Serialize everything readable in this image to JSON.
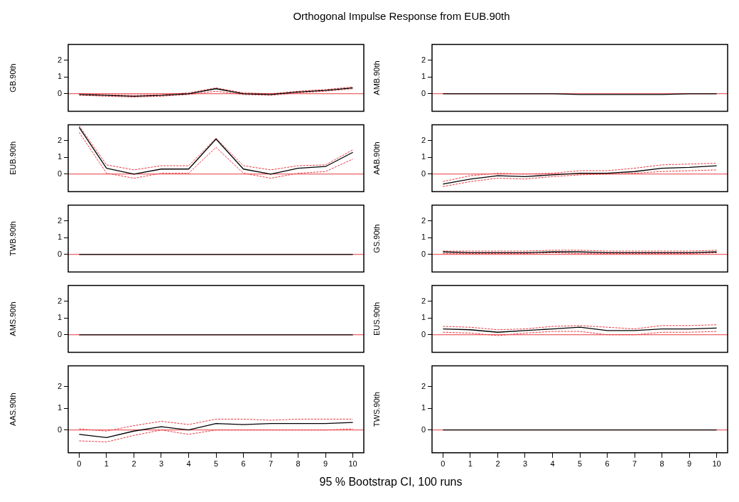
{
  "chart_data": [
    {
      "type": "line",
      "title": "Orthogonal Impulse Response from EUB.90th",
      "ylabel": "GB.90th",
      "x": [
        0,
        1,
        2,
        3,
        4,
        5,
        6,
        7,
        8,
        9,
        10
      ],
      "xlim": [
        -0.4,
        10.4
      ],
      "xticks": [
        0,
        1,
        2,
        3,
        4,
        5,
        6,
        7,
        8,
        9,
        10
      ],
      "ylim": [
        -1.05,
        2.95
      ],
      "yticks": [
        0,
        1,
        2
      ],
      "tick_labels": "y",
      "series": [
        {
          "color": "#000000",
          "values": [
            -0.05,
            -0.1,
            -0.15,
            -0.1,
            0.0,
            0.3,
            0.0,
            -0.05,
            0.1,
            0.2,
            0.35
          ]
        },
        {
          "color": "#e8393f",
          "line_style": "dashed",
          "values": [
            -0.1,
            -0.15,
            -0.2,
            -0.15,
            -0.05,
            0.15,
            -0.05,
            -0.1,
            0.05,
            0.15,
            0.3
          ]
        },
        {
          "color": "#e8393f",
          "line_style": "dashed",
          "values": [
            0.0,
            -0.05,
            -0.1,
            -0.05,
            0.05,
            0.35,
            0.05,
            0.0,
            0.15,
            0.25,
            0.4
          ]
        }
      ],
      "ref_lines": [
        {
          "axis": "y",
          "value": 0,
          "color": "#e8393f"
        }
      ]
    },
    {
      "type": "line",
      "ylabel": "AMB.90th",
      "x": [
        0,
        1,
        2,
        3,
        4,
        5,
        6,
        7,
        8,
        9,
        10
      ],
      "xlim": [
        -0.4,
        10.4
      ],
      "xticks": [
        0,
        1,
        2,
        3,
        4,
        5,
        6,
        7,
        8,
        9,
        10
      ],
      "ylim": [
        -1.05,
        2.95
      ],
      "yticks": [
        0,
        1,
        2
      ],
      "tick_labels": "y",
      "series": [
        {
          "color": "#000000",
          "values": [
            0.0,
            0.0,
            0.0,
            0.0,
            0.0,
            -0.05,
            -0.05,
            -0.05,
            -0.05,
            0.0,
            0.0
          ]
        }
      ],
      "ref_lines": [
        {
          "axis": "y",
          "value": 0,
          "color": "#e8393f"
        }
      ]
    },
    {
      "type": "line",
      "ylabel": "EUB.90th",
      "x": [
        0,
        1,
        2,
        3,
        4,
        5,
        6,
        7,
        8,
        9,
        10
      ],
      "xlim": [
        -0.4,
        10.4
      ],
      "xticks": [
        0,
        1,
        2,
        3,
        4,
        5,
        6,
        7,
        8,
        9,
        10
      ],
      "ylim": [
        -1.05,
        2.95
      ],
      "yticks": [
        0,
        1,
        2
      ],
      "tick_labels": "y",
      "series": [
        {
          "color": "#000000",
          "values": [
            2.8,
            0.35,
            0.0,
            0.3,
            0.3,
            2.1,
            0.3,
            0.0,
            0.35,
            0.45,
            1.3
          ]
        },
        {
          "color": "#e8393f",
          "line_style": "dashed",
          "values": [
            2.5,
            0.05,
            -0.25,
            0.05,
            0.05,
            1.6,
            0.05,
            -0.25,
            0.05,
            0.15,
            0.9
          ]
        },
        {
          "color": "#e8393f",
          "line_style": "dashed",
          "values": [
            2.9,
            0.55,
            0.25,
            0.5,
            0.5,
            2.15,
            0.5,
            0.25,
            0.5,
            0.55,
            1.45
          ]
        }
      ],
      "ref_lines": [
        {
          "axis": "y",
          "value": 0,
          "color": "#e8393f"
        }
      ]
    },
    {
      "type": "line",
      "ylabel": "AAB.90th",
      "x": [
        0,
        1,
        2,
        3,
        4,
        5,
        6,
        7,
        8,
        9,
        10
      ],
      "xlim": [
        -0.4,
        10.4
      ],
      "xticks": [
        0,
        1,
        2,
        3,
        4,
        5,
        6,
        7,
        8,
        9,
        10
      ],
      "ylim": [
        -1.05,
        2.95
      ],
      "yticks": [
        0,
        1,
        2
      ],
      "tick_labels": "y",
      "series": [
        {
          "color": "#000000",
          "values": [
            -0.6,
            -0.3,
            -0.1,
            -0.15,
            -0.05,
            0.05,
            0.05,
            0.15,
            0.35,
            0.4,
            0.5
          ]
        },
        {
          "color": "#e8393f",
          "line_style": "dashed",
          "values": [
            -0.75,
            -0.45,
            -0.25,
            -0.3,
            -0.15,
            -0.05,
            0.0,
            0.05,
            0.15,
            0.2,
            0.25
          ]
        },
        {
          "color": "#e8393f",
          "line_style": "dashed",
          "values": [
            -0.45,
            -0.1,
            0.05,
            0.0,
            0.05,
            0.2,
            0.2,
            0.35,
            0.55,
            0.6,
            0.65
          ]
        }
      ],
      "ref_lines": [
        {
          "axis": "y",
          "value": 0,
          "color": "#e8393f"
        }
      ]
    },
    {
      "type": "line",
      "ylabel": "TWB.90th",
      "x": [
        0,
        1,
        2,
        3,
        4,
        5,
        6,
        7,
        8,
        9,
        10
      ],
      "xlim": [
        -0.4,
        10.4
      ],
      "xticks": [
        0,
        1,
        2,
        3,
        4,
        5,
        6,
        7,
        8,
        9,
        10
      ],
      "ylim": [
        -1.05,
        2.95
      ],
      "yticks": [
        0,
        1,
        2
      ],
      "tick_labels": "y",
      "series": [
        {
          "color": "#000000",
          "values": [
            0,
            0,
            0,
            0,
            0,
            0,
            0,
            0,
            0,
            0,
            0
          ]
        }
      ],
      "ref_lines": [
        {
          "axis": "y",
          "value": 0,
          "color": "#e8393f"
        }
      ]
    },
    {
      "type": "line",
      "ylabel": "GS.90th",
      "x": [
        0,
        1,
        2,
        3,
        4,
        5,
        6,
        7,
        8,
        9,
        10
      ],
      "xlim": [
        -0.4,
        10.4
      ],
      "xticks": [
        0,
        1,
        2,
        3,
        4,
        5,
        6,
        7,
        8,
        9,
        10
      ],
      "ylim": [
        -1.05,
        2.95
      ],
      "yticks": [
        0,
        1,
        2
      ],
      "tick_labels": "y",
      "series": [
        {
          "color": "#000000",
          "values": [
            0.15,
            0.1,
            0.1,
            0.1,
            0.15,
            0.15,
            0.1,
            0.1,
            0.1,
            0.1,
            0.15
          ]
        },
        {
          "color": "#e8393f",
          "line_style": "dashed",
          "values": [
            0.05,
            0.05,
            0.05,
            0.05,
            0.1,
            0.05,
            0.05,
            0.05,
            0.05,
            0.05,
            0.1
          ]
        },
        {
          "color": "#e8393f",
          "line_style": "dashed",
          "values": [
            0.2,
            0.2,
            0.2,
            0.2,
            0.25,
            0.25,
            0.2,
            0.2,
            0.2,
            0.2,
            0.25
          ]
        }
      ],
      "ref_lines": [
        {
          "axis": "y",
          "value": 0,
          "color": "#e8393f"
        }
      ]
    },
    {
      "type": "line",
      "ylabel": "AMS.90th",
      "x": [
        0,
        1,
        2,
        3,
        4,
        5,
        6,
        7,
        8,
        9,
        10
      ],
      "xlim": [
        -0.4,
        10.4
      ],
      "xticks": [
        0,
        1,
        2,
        3,
        4,
        5,
        6,
        7,
        8,
        9,
        10
      ],
      "ylim": [
        -1.05,
        2.95
      ],
      "yticks": [
        0,
        1,
        2
      ],
      "tick_labels": "y",
      "series": [
        {
          "color": "#000000",
          "values": [
            0,
            0,
            0,
            0,
            0,
            0,
            0,
            0,
            0,
            0,
            0
          ]
        }
      ],
      "ref_lines": [
        {
          "axis": "y",
          "value": 0,
          "color": "#e8393f"
        }
      ]
    },
    {
      "type": "line",
      "ylabel": "EUS.90th",
      "x": [
        0,
        1,
        2,
        3,
        4,
        5,
        6,
        7,
        8,
        9,
        10
      ],
      "xlim": [
        -0.4,
        10.4
      ],
      "xticks": [
        0,
        1,
        2,
        3,
        4,
        5,
        6,
        7,
        8,
        9,
        10
      ],
      "ylim": [
        -1.05,
        2.95
      ],
      "yticks": [
        0,
        1,
        2
      ],
      "tick_labels": "y",
      "series": [
        {
          "color": "#000000",
          "values": [
            0.35,
            0.3,
            0.15,
            0.25,
            0.35,
            0.45,
            0.25,
            0.25,
            0.35,
            0.35,
            0.4
          ]
        },
        {
          "color": "#e8393f",
          "line_style": "dashed",
          "values": [
            0.15,
            0.1,
            -0.05,
            0.1,
            0.2,
            0.2,
            0.0,
            0.0,
            0.15,
            0.15,
            0.2
          ]
        },
        {
          "color": "#e8393f",
          "line_style": "dashed",
          "values": [
            0.5,
            0.45,
            0.3,
            0.35,
            0.5,
            0.55,
            0.45,
            0.35,
            0.55,
            0.55,
            0.6
          ]
        }
      ],
      "ref_lines": [
        {
          "axis": "y",
          "value": 0,
          "color": "#e8393f"
        }
      ]
    },
    {
      "type": "line",
      "ylabel": "AAS.90th",
      "xlabel": "95 % Bootstrap CI,  100 runs",
      "x": [
        0,
        1,
        2,
        3,
        4,
        5,
        6,
        7,
        8,
        9,
        10
      ],
      "xlim": [
        -0.4,
        10.4
      ],
      "xticks": [
        0,
        1,
        2,
        3,
        4,
        5,
        6,
        7,
        8,
        9,
        10
      ],
      "ylim": [
        -1.05,
        2.95
      ],
      "yticks": [
        0,
        1,
        2
      ],
      "series": [
        {
          "color": "#000000",
          "values": [
            -0.2,
            -0.35,
            -0.05,
            0.15,
            0.0,
            0.3,
            0.25,
            0.3,
            0.3,
            0.3,
            0.35
          ]
        },
        {
          "color": "#e8393f",
          "line_style": "dashed",
          "values": [
            -0.5,
            -0.55,
            -0.25,
            0.0,
            -0.2,
            0.0,
            0.0,
            0.0,
            0.0,
            0.0,
            0.05
          ]
        },
        {
          "color": "#e8393f",
          "line_style": "dashed",
          "values": [
            0.05,
            -0.05,
            0.2,
            0.4,
            0.25,
            0.5,
            0.5,
            0.45,
            0.5,
            0.5,
            0.5
          ]
        }
      ],
      "ref_lines": [
        {
          "axis": "y",
          "value": 0,
          "color": "#e8393f"
        }
      ]
    },
    {
      "type": "line",
      "ylabel": "TWS.90th",
      "x": [
        0,
        1,
        2,
        3,
        4,
        5,
        6,
        7,
        8,
        9,
        10
      ],
      "xlim": [
        -0.4,
        10.4
      ],
      "xticks": [
        0,
        1,
        2,
        3,
        4,
        5,
        6,
        7,
        8,
        9,
        10
      ],
      "ylim": [
        -1.05,
        2.95
      ],
      "yticks": [
        0,
        1,
        2
      ],
      "series": [
        {
          "color": "#000000",
          "values": [
            0,
            0,
            0,
            0,
            0,
            0,
            0,
            0,
            0,
            0,
            0
          ]
        }
      ],
      "ref_lines": [
        {
          "axis": "y",
          "value": 0,
          "color": "#e8393f"
        }
      ]
    }
  ]
}
